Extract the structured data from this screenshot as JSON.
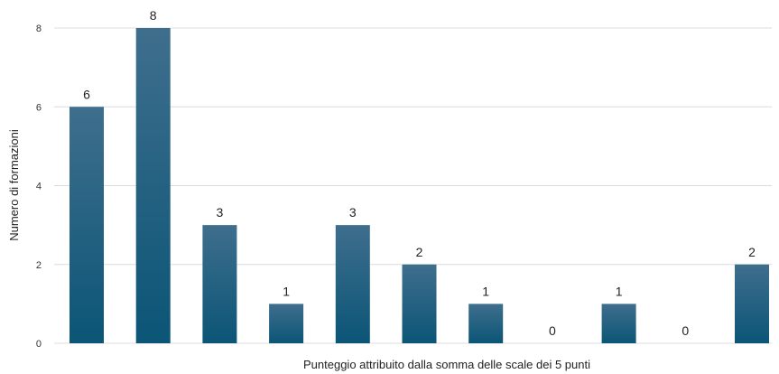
{
  "chart_data": {
    "type": "bar",
    "title": "",
    "xlabel": "Punteggio attribuito dalla somma delle scale dei 5 punti",
    "ylabel": "Numero di formazioni",
    "categories": [
      "",
      "",
      "",
      "",
      "",
      "",
      "",
      "",
      "",
      "",
      ""
    ],
    "values": [
      6,
      8,
      3,
      1,
      3,
      2,
      1,
      0,
      1,
      0,
      2
    ],
    "ylim": [
      0,
      8
    ],
    "yticks": [
      0,
      2,
      4,
      6,
      8
    ],
    "grid": true,
    "legend": "none",
    "colors": {
      "bar_top": "#3f6e8d",
      "bar_bottom": "#0b5576",
      "grid": "#dcdcdc"
    }
  }
}
